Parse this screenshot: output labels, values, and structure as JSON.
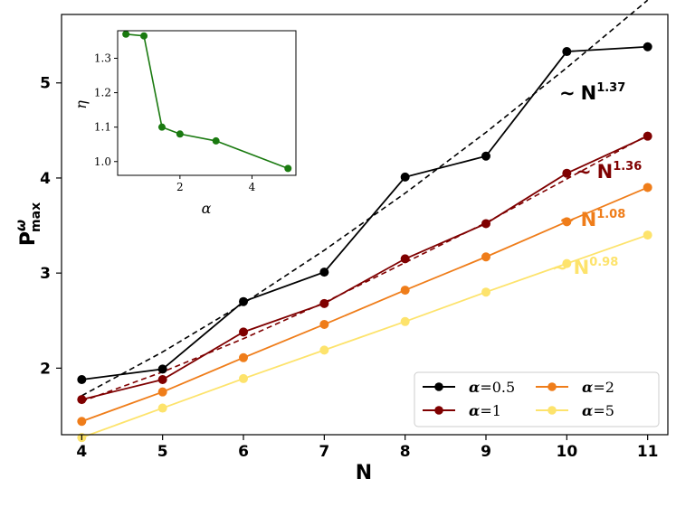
{
  "chart_data": [
    {
      "type": "line",
      "title": "",
      "xlabel": "N",
      "ylabel_main": "P",
      "ylabel_sup": "ω",
      "ylabel_sub": "max",
      "x": [
        4,
        5,
        6,
        7,
        8,
        9,
        10,
        11
      ],
      "xlim": [
        3.75,
        11.25
      ],
      "ylim": [
        1.3,
        5.72
      ],
      "xticks": [
        "4",
        "5",
        "6",
        "7",
        "8",
        "9",
        "10",
        "11"
      ],
      "yticks": [
        {
          "value": 2,
          "label": "2"
        },
        {
          "value": 3,
          "label": "3"
        },
        {
          "value": 4,
          "label": "4"
        },
        {
          "value": 5,
          "label": "5"
        }
      ],
      "series": [
        {
          "name": "α=0.5",
          "legend_sym": "α",
          "legend_val": "=0.5",
          "color": "#000000",
          "values": [
            1.88,
            1.99,
            2.7,
            3.01,
            4.01,
            4.23,
            5.33,
            5.38
          ]
        },
        {
          "name": "α=1",
          "legend_sym": "α",
          "legend_val": "=1",
          "color": "#7f0000",
          "values": [
            1.67,
            1.88,
            2.38,
            2.68,
            3.15,
            3.52,
            4.05,
            4.44
          ]
        },
        {
          "name": "α=2",
          "legend_sym": "α",
          "legend_val": "=2",
          "color": "#ef7d1a",
          "values": [
            1.44,
            1.75,
            2.11,
            2.46,
            2.82,
            3.17,
            3.54,
            3.9
          ]
        },
        {
          "name": "α=5",
          "legend_sym": "α",
          "legend_val": "=5",
          "color": "#fde36c",
          "values": [
            1.27,
            1.58,
            1.89,
            2.19,
            2.49,
            2.8,
            3.1,
            3.4
          ]
        }
      ],
      "fits": [
        {
          "series": "α=0.5",
          "color": "#000000",
          "x": [
            4,
            5,
            6,
            7,
            8,
            9,
            10,
            11
          ],
          "values": [
            1.71,
            2.17,
            2.68,
            3.24,
            3.84,
            4.48,
            5.16,
            5.87
          ]
        },
        {
          "series": "α=1",
          "color": "#7f0000",
          "x": [
            4,
            5,
            6,
            7,
            8,
            9,
            10,
            11
          ],
          "values": [
            1.65,
            1.96,
            2.31,
            2.69,
            3.11,
            3.53,
            3.99,
            4.45
          ]
        }
      ],
      "annotations": [
        {
          "sim": "∼",
          "base": "N",
          "exp": "1.37",
          "color": "#000000"
        },
        {
          "sim": "∼",
          "base": "N",
          "exp": "1.36",
          "color": "#7f0000"
        },
        {
          "sim": "∼",
          "base": "N",
          "exp": "1.08",
          "color": "#ef7d1a"
        },
        {
          "sim": "∼",
          "base": "N",
          "exp": "0.98",
          "color": "#fde36c"
        }
      ],
      "legend_position": "lower-right"
    },
    {
      "type": "line",
      "role": "inset",
      "xlabel": "α",
      "ylabel": "η",
      "xlim": [
        0.27,
        5.22
      ],
      "ylim": [
        0.96,
        1.38
      ],
      "xticks": [
        "2",
        "4"
      ],
      "xtick_values": [
        2,
        4
      ],
      "yticks": [
        "1.0",
        "1.1",
        "1.2",
        "1.3"
      ],
      "ytick_values": [
        1.0,
        1.1,
        1.2,
        1.3
      ],
      "color": "#1a7a10",
      "x": [
        0.5,
        1,
        1.5,
        2,
        3,
        5
      ],
      "values": [
        1.37,
        1.365,
        1.1,
        1.08,
        1.06,
        0.98
      ]
    }
  ]
}
